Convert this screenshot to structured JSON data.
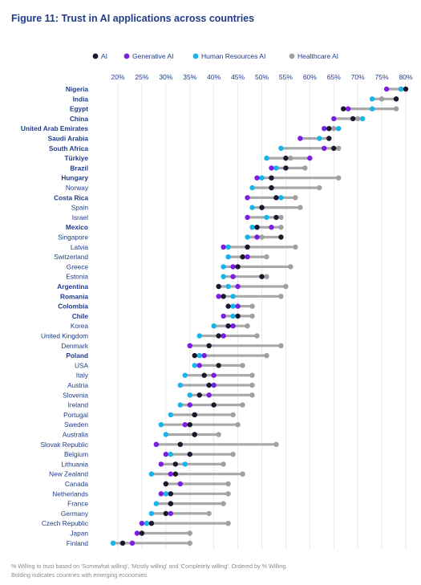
{
  "chart_data": {
    "type": "dot-range",
    "title": "Figure 11: Trust in AI applications across countries",
    "series": [
      {
        "name": "AI",
        "color": "#1a1a2e"
      },
      {
        "name": "Generative AI",
        "color": "#7a1fe0"
      },
      {
        "name": "Human Resources  AI",
        "color": "#16b4e8"
      },
      {
        "name": "Healthcare AI",
        "color": "#a0a0a0"
      }
    ],
    "x_ticks": [
      "20%",
      "25%",
      "30%",
      "35%",
      "40%",
      "45%",
      "50%",
      "55%",
      "60%",
      "65%",
      "70%",
      "75%",
      "80%"
    ],
    "x_range": [
      20,
      80
    ],
    "rows": [
      {
        "country": "Nigeria",
        "bold": true,
        "ai": 80,
        "gen": 76,
        "hr": 79,
        "health": 79
      },
      {
        "country": "India",
        "bold": true,
        "ai": 78,
        "gen": 78,
        "hr": 73,
        "health": 75
      },
      {
        "country": "Egypt",
        "bold": true,
        "ai": 67,
        "gen": 68,
        "hr": 73,
        "health": 78
      },
      {
        "country": "China",
        "bold": true,
        "ai": 69,
        "gen": 65,
        "hr": 71,
        "health": 70
      },
      {
        "country": "United Arab Emirates",
        "bold": true,
        "ai": 64,
        "gen": 63,
        "hr": 66,
        "health": 65
      },
      {
        "country": "Saudi Arabia",
        "bold": true,
        "ai": 64,
        "gen": 58,
        "hr": 62,
        "health": 64
      },
      {
        "country": "South Africa",
        "bold": true,
        "ai": 65,
        "gen": 63,
        "hr": 54,
        "health": 66
      },
      {
        "country": "Türkiye",
        "bold": true,
        "ai": 55,
        "gen": 60,
        "hr": 51,
        "health": 56
      },
      {
        "country": "Brazil",
        "bold": true,
        "ai": 55,
        "gen": 52,
        "hr": 53,
        "health": 59
      },
      {
        "country": "Hungary",
        "bold": true,
        "ai": 52,
        "gen": 49,
        "hr": 50,
        "health": 66
      },
      {
        "country": "Norway",
        "bold": false,
        "ai": 52,
        "gen": 52,
        "hr": 48,
        "health": 62
      },
      {
        "country": "Costa Rica",
        "bold": true,
        "ai": 53,
        "gen": 47,
        "hr": 54,
        "health": 57
      },
      {
        "country": "Spain",
        "bold": false,
        "ai": 50,
        "gen": 50,
        "hr": 48,
        "health": 58
      },
      {
        "country": "Israel",
        "bold": false,
        "ai": 53,
        "gen": 47,
        "hr": 51,
        "health": 54
      },
      {
        "country": "Mexico",
        "bold": true,
        "ai": 49,
        "gen": 52,
        "hr": 48,
        "health": 54
      },
      {
        "country": "Singapore",
        "bold": false,
        "ai": 54,
        "gen": 49,
        "hr": 47,
        "health": 50
      },
      {
        "country": "Latvia",
        "bold": false,
        "ai": 47,
        "gen": 42,
        "hr": 43,
        "health": 57
      },
      {
        "country": "Switzerland",
        "bold": false,
        "ai": 46,
        "gen": 47,
        "hr": 43,
        "health": 51
      },
      {
        "country": "Greece",
        "bold": false,
        "ai": 45,
        "gen": 44,
        "hr": 42,
        "health": 56
      },
      {
        "country": "Estonia",
        "bold": false,
        "ai": 50,
        "gen": 44,
        "hr": 42,
        "health": 51
      },
      {
        "country": "Argentina",
        "bold": true,
        "ai": 41,
        "gen": 45,
        "hr": 43,
        "health": 55
      },
      {
        "country": "Romania",
        "bold": true,
        "ai": 42,
        "gen": 41,
        "hr": 44,
        "health": 54
      },
      {
        "country": "Colombia",
        "bold": true,
        "ai": 43,
        "gen": 45,
        "hr": 44,
        "health": 48
      },
      {
        "country": "Chile",
        "bold": true,
        "ai": 45,
        "gen": 42,
        "hr": 44,
        "health": 48
      },
      {
        "country": "Korea",
        "bold": false,
        "ai": 43,
        "gen": 44,
        "hr": 40,
        "health": 47
      },
      {
        "country": "United Kingdom",
        "bold": false,
        "ai": 41,
        "gen": 42,
        "hr": 37,
        "health": 49
      },
      {
        "country": "Denmark",
        "bold": false,
        "ai": 39,
        "gen": 35,
        "hr": 35,
        "health": 54
      },
      {
        "country": "Poland",
        "bold": true,
        "ai": 36,
        "gen": 38,
        "hr": 37,
        "health": 51
      },
      {
        "country": "USA",
        "bold": false,
        "ai": 41,
        "gen": 37,
        "hr": 36,
        "health": 46
      },
      {
        "country": "Italy",
        "bold": false,
        "ai": 38,
        "gen": 40,
        "hr": 34,
        "health": 48
      },
      {
        "country": "Austria",
        "bold": false,
        "ai": 39,
        "gen": 40,
        "hr": 33,
        "health": 48
      },
      {
        "country": "Slovenia",
        "bold": false,
        "ai": 37,
        "gen": 39,
        "hr": 35,
        "health": 48
      },
      {
        "country": "Ireland",
        "bold": false,
        "ai": 40,
        "gen": 35,
        "hr": 33,
        "health": 46
      },
      {
        "country": "Portugal",
        "bold": false,
        "ai": 36,
        "gen": 36,
        "hr": 31,
        "health": 44
      },
      {
        "country": "Sweden",
        "bold": false,
        "ai": 35,
        "gen": 34,
        "hr": 29,
        "health": 45
      },
      {
        "country": "Australia",
        "bold": false,
        "ai": 36,
        "gen": 36,
        "hr": 30,
        "health": 41
      },
      {
        "country": "Slovak Republic",
        "bold": false,
        "ai": 33,
        "gen": 28,
        "hr": 28,
        "health": 53
      },
      {
        "country": "Belgium",
        "bold": false,
        "ai": 35,
        "gen": 30,
        "hr": 31,
        "health": 44
      },
      {
        "country": "Lithuania",
        "bold": false,
        "ai": 32,
        "gen": 29,
        "hr": 34,
        "health": 42
      },
      {
        "country": "New Zealand",
        "bold": false,
        "ai": 32,
        "gen": 31,
        "hr": 27,
        "health": 46
      },
      {
        "country": "Canada",
        "bold": false,
        "ai": 30,
        "gen": 33,
        "hr": 30,
        "health": 43
      },
      {
        "country": "Netherlands",
        "bold": false,
        "ai": 31,
        "gen": 29,
        "hr": 30,
        "health": 43
      },
      {
        "country": "France",
        "bold": false,
        "ai": 31,
        "gen": 31,
        "hr": 28,
        "health": 42
      },
      {
        "country": "Germany",
        "bold": false,
        "ai": 30,
        "gen": 31,
        "hr": 27,
        "health": 39
      },
      {
        "country": "Czech Republic",
        "bold": false,
        "ai": 27,
        "gen": 25,
        "hr": 26,
        "health": 43
      },
      {
        "country": "Japan",
        "bold": false,
        "ai": 25,
        "gen": 24,
        "hr": 25,
        "health": 35
      },
      {
        "country": "Finland",
        "bold": false,
        "ai": 21,
        "gen": 23,
        "hr": 19,
        "health": 35
      }
    ],
    "notes": [
      "% Willing to trust based on 'Somewhat willing', 'Mostly willing' and 'Completely willing'. Ordered by % Willing.",
      "Bolding indicates countries with emerging economies."
    ]
  }
}
